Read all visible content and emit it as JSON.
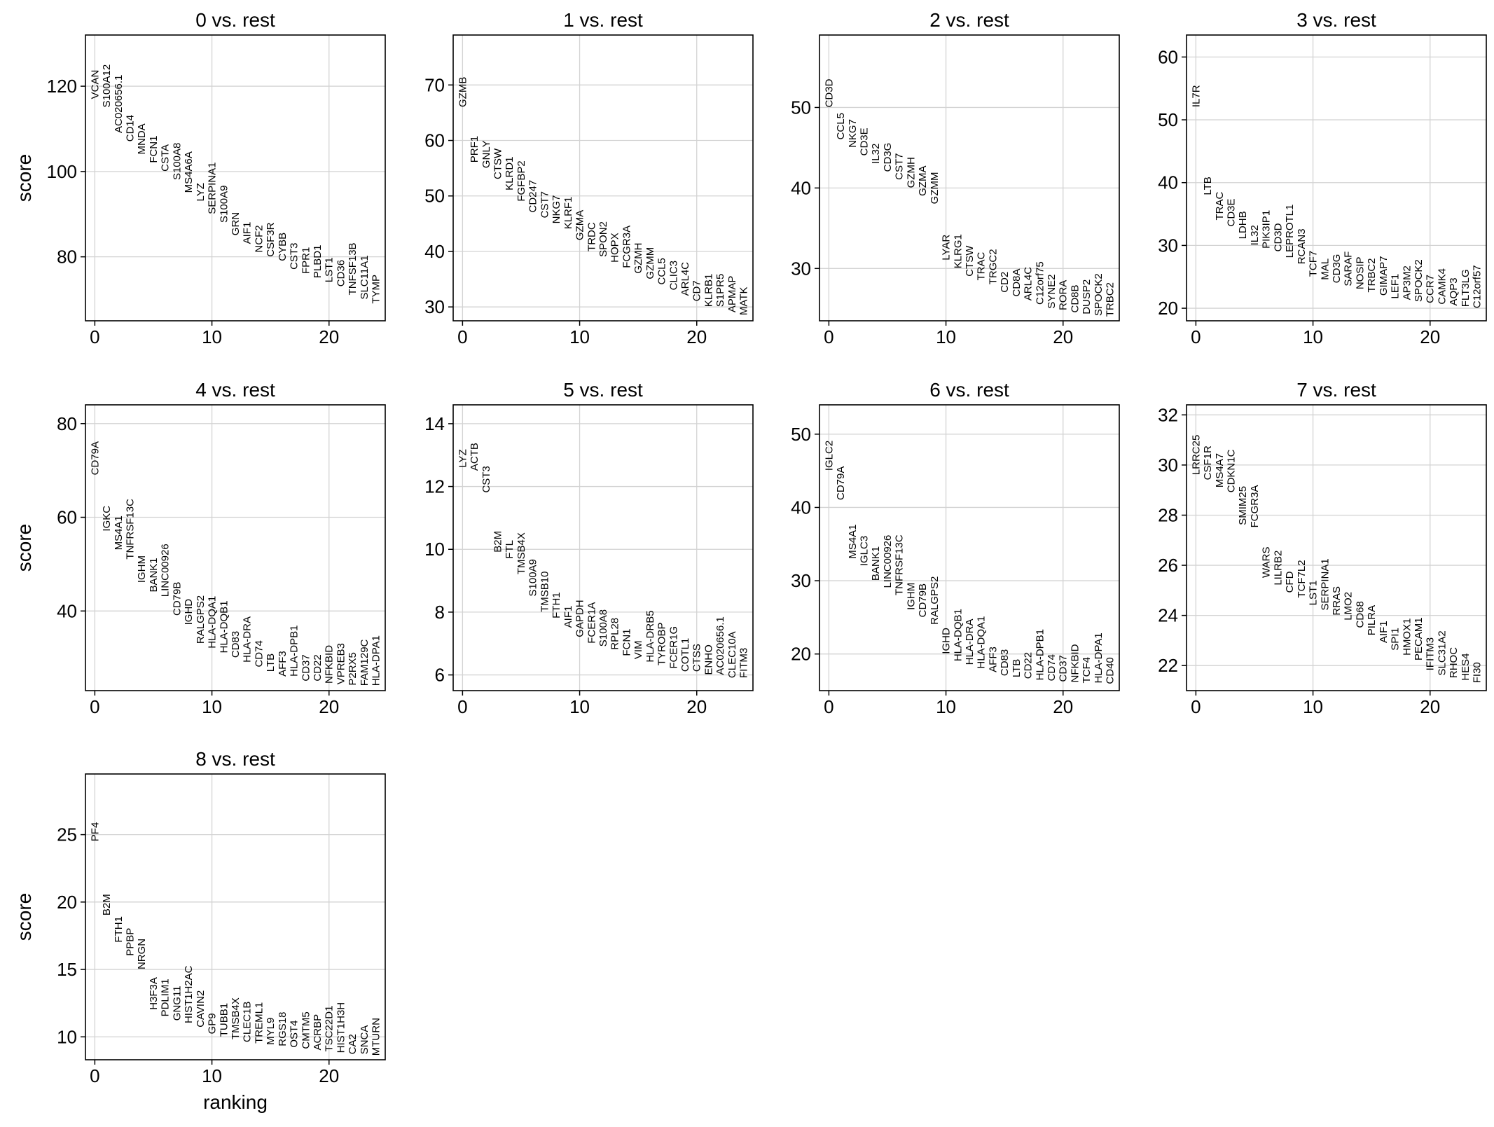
{
  "chart_data": [
    {
      "type": "scatter",
      "title": "0 vs. rest",
      "ylabel": "score",
      "xlabel": "",
      "xlim": [
        -0.8,
        24.8
      ],
      "ylim": [
        65,
        132
      ],
      "xticks": [
        0,
        10,
        20
      ],
      "yticks": [
        80,
        100,
        120
      ],
      "grid": true,
      "genes": [
        "VCAN",
        "S100A12",
        "AC020656.1",
        "CD14",
        "MNDA",
        "FCN1",
        "CSTA",
        "S100A8",
        "MS4A6A",
        "LYZ",
        "SERPINA1",
        "S100A9",
        "GRN",
        "AIF1",
        "NCF2",
        "CSF3R",
        "CYBB",
        "CST3",
        "FPR1",
        "PLBD1",
        "LST1",
        "CD36",
        "TNFSF13B",
        "SLC11A1",
        "TYMP"
      ],
      "scores": [
        117,
        115,
        109,
        107,
        104,
        102,
        100,
        98,
        95,
        93,
        90,
        88,
        85,
        83,
        81,
        80,
        79,
        77,
        76,
        75,
        74,
        73,
        71,
        70,
        69
      ]
    },
    {
      "type": "scatter",
      "title": "1 vs. rest",
      "ylabel": "",
      "xlabel": "",
      "xlim": [
        -0.8,
        24.8
      ],
      "ylim": [
        27.5,
        79
      ],
      "xticks": [
        0,
        10,
        20
      ],
      "yticks": [
        30,
        40,
        50,
        60,
        70
      ],
      "grid": true,
      "genes": [
        "GZMB",
        "PRF1",
        "GNLY",
        "CTSW",
        "KLRD1",
        "FGFBP2",
        "CD247",
        "CST7",
        "NKG7",
        "KLRF1",
        "GZMA",
        "TRDC",
        "SPON2",
        "HOPX",
        "FCGR3A",
        "GZMH",
        "GZMM",
        "CCL5",
        "CLIC3",
        "ARL4C",
        "CD7",
        "KLRB1",
        "S1PR5",
        "APMAP",
        "MATK"
      ],
      "scores": [
        66,
        56,
        55,
        53,
        51,
        49,
        47,
        46,
        45,
        44,
        42,
        40,
        39,
        38,
        37,
        36,
        35,
        34,
        33,
        32,
        31,
        30,
        30,
        29,
        28.5
      ]
    },
    {
      "type": "scatter",
      "title": "2 vs. rest",
      "ylabel": "",
      "xlabel": "",
      "xlim": [
        -0.8,
        24.8
      ],
      "ylim": [
        23.5,
        59
      ],
      "xticks": [
        0,
        10,
        20
      ],
      "yticks": [
        30,
        40,
        50
      ],
      "grid": true,
      "genes": [
        "CD3D",
        "CCL5",
        "NKG7",
        "CD3E",
        "IL32",
        "CD3G",
        "CST7",
        "GZMH",
        "GZMA",
        "GZMM",
        "LYAR",
        "KLRG1",
        "CTSW",
        "TRAC",
        "TRGC2",
        "CD2",
        "CD8A",
        "ARL4C",
        "C12orf75",
        "SYNE2",
        "RORA",
        "CD8B",
        "DUSP2",
        "SPOCK2",
        "TRBC2"
      ],
      "scores": [
        50,
        46,
        45,
        44,
        43,
        42,
        41,
        40,
        39,
        38,
        31,
        30,
        29,
        28.5,
        28,
        27,
        26.5,
        26,
        25.5,
        25,
        24.8,
        24.5,
        24.3,
        24.1,
        24
      ]
    },
    {
      "type": "scatter",
      "title": "3 vs. rest",
      "ylabel": "",
      "xlabel": "",
      "xlim": [
        -0.8,
        24.8
      ],
      "ylim": [
        18,
        63.5
      ],
      "xticks": [
        0,
        10,
        20
      ],
      "yticks": [
        20,
        30,
        40,
        50,
        60
      ],
      "grid": true,
      "genes": [
        "IL7R",
        "LTB",
        "TRAC",
        "CD3E",
        "LDHB",
        "IL32",
        "PIK3IP1",
        "CD3D",
        "LEPROTL1",
        "RCAN3",
        "TCF7",
        "MAL",
        "CD3G",
        "SARAF",
        "NOSIP",
        "TRBC2",
        "GIMAP7",
        "LEF1",
        "AP3M2",
        "SPOCK2",
        "CCR7",
        "CAMK4",
        "AQP3",
        "FLT3LG",
        "C12orf57"
      ],
      "scores": [
        52,
        38,
        34,
        33,
        31,
        30,
        29.5,
        29,
        28,
        27,
        25,
        24.5,
        24,
        23.5,
        23,
        22.5,
        22,
        21.5,
        21.3,
        21,
        20.8,
        20.6,
        20.4,
        20.2,
        20
      ]
    },
    {
      "type": "scatter",
      "title": "4 vs. rest",
      "ylabel": "score",
      "xlabel": "",
      "xlim": [
        -0.8,
        24.8
      ],
      "ylim": [
        23,
        84
      ],
      "xticks": [
        0,
        10,
        20
      ],
      "yticks": [
        40,
        60,
        80
      ],
      "grid": true,
      "genes": [
        "CD79A",
        "IGKC",
        "MS4A1",
        "TNFRSF13C",
        "IGHM",
        "BANK1",
        "LINC00926",
        "CD79B",
        "IGHD",
        "RALGPS2",
        "HLA-DQA1",
        "HLA-DQB1",
        "CD83",
        "HLA-DRA",
        "CD74",
        "LTB",
        "AFF3",
        "HLA-DPB1",
        "CD37",
        "CD22",
        "NFKBID",
        "VPREB3",
        "P2RX5",
        "FAM129C",
        "HLA-DPA1"
      ],
      "scores": [
        69,
        57,
        53,
        51,
        46,
        44,
        43,
        39,
        37,
        33,
        32,
        31,
        30,
        29,
        28,
        27,
        26,
        26,
        25,
        25,
        24.5,
        24.3,
        24.1,
        24,
        24
      ]
    },
    {
      "type": "scatter",
      "title": "5 vs. rest",
      "ylabel": "",
      "xlabel": "",
      "xlim": [
        -0.8,
        24.8
      ],
      "ylim": [
        5.5,
        14.6
      ],
      "xticks": [
        0,
        10,
        20
      ],
      "yticks": [
        6,
        8,
        10,
        12,
        14
      ],
      "grid": true,
      "genes": [
        "LYZ",
        "ACTB",
        "CST3",
        "B2M",
        "FTL",
        "TMSB4X",
        "S100A9",
        "TMSB10",
        "FTH1",
        "AIF1",
        "GAPDH",
        "FCER1A",
        "S100A8",
        "RPL28",
        "FCN1",
        "VIM",
        "HLA-DRB5",
        "TYROBP",
        "FCER1G",
        "COTL1",
        "CTSS",
        "ENHO",
        "AC020656.1",
        "CLEC10A",
        "FITM3"
      ],
      "scores": [
        12.6,
        12.5,
        11.8,
        9.9,
        9.7,
        9.2,
        8.5,
        8.0,
        7.8,
        7.5,
        7.2,
        7.0,
        6.9,
        6.8,
        6.6,
        6.5,
        6.4,
        6.3,
        6.2,
        6.1,
        6.1,
        6.0,
        6.0,
        5.9,
        5.9
      ]
    },
    {
      "type": "scatter",
      "title": "6 vs. rest",
      "ylabel": "",
      "xlabel": "",
      "xlim": [
        -0.8,
        24.8
      ],
      "ylim": [
        15,
        54
      ],
      "xticks": [
        0,
        10,
        20
      ],
      "yticks": [
        20,
        30,
        40,
        50
      ],
      "grid": true,
      "genes": [
        "IGLC2",
        "CD79A",
        "MS4A1",
        "IGLC3",
        "BANK1",
        "LINC00926",
        "TNFRSF13C",
        "IGHM",
        "CD79B",
        "RALGPS2",
        "IGHD",
        "HLA-DQB1",
        "HLA-DRA",
        "HLA-DQA1",
        "AFF3",
        "CD83",
        "LTB",
        "CD22",
        "HLA-DPB1",
        "CD74",
        "CD37",
        "NFKBID",
        "TCF4",
        "HLA-DPA1",
        "CD40"
      ],
      "scores": [
        45,
        41,
        33,
        32,
        30,
        29,
        28,
        26,
        25,
        24,
        20,
        19,
        18.5,
        18,
        17.5,
        17,
        16.8,
        16.6,
        16.4,
        16.3,
        16.2,
        16.1,
        16.0,
        16.0,
        15.9
      ]
    },
    {
      "type": "scatter",
      "title": "7 vs. rest",
      "ylabel": "",
      "xlabel": "",
      "xlim": [
        -0.8,
        24.8
      ],
      "ylim": [
        21,
        32.4
      ],
      "xticks": [
        0,
        10,
        20
      ],
      "yticks": [
        22,
        24,
        26,
        28,
        30,
        32
      ],
      "grid": true,
      "genes": [
        "LRRC25",
        "CSF1R",
        "MS4A7",
        "CDKN1C",
        "SMIM25",
        "FCGR3A",
        "WARS",
        "LILRB2",
        "CFD",
        "TCF7L2",
        "LST1",
        "SERPINA1",
        "RRAS",
        "LMO2",
        "CD68",
        "PILRA",
        "AIF1",
        "SPI1",
        "HMOX1",
        "PECAM1",
        "IFITM3",
        "SLC31A2",
        "RHOC",
        "HES4",
        "FI30"
      ],
      "scores": [
        29.6,
        29.4,
        29.1,
        28.9,
        27.6,
        27.5,
        25.5,
        25.2,
        24.9,
        24.7,
        24.4,
        24.2,
        24.0,
        23.8,
        23.5,
        23.2,
        22.9,
        22.6,
        22.4,
        22.2,
        21.8,
        21.6,
        21.5,
        21.4,
        21.3
      ]
    },
    {
      "type": "scatter",
      "title": "8 vs. rest",
      "ylabel": "score",
      "xlabel": "ranking",
      "xlim": [
        -0.8,
        24.8
      ],
      "ylim": [
        8.3,
        29.5
      ],
      "xticks": [
        0,
        10,
        20
      ],
      "yticks": [
        10,
        15,
        20,
        25
      ],
      "grid": true,
      "genes": [
        "PF4",
        "B2M",
        "FTH1",
        "PPBP",
        "NRGN",
        "H3F3A",
        "PDLIM1",
        "GNG11",
        "HIST1H2AC",
        "CAVIN2",
        "GP9",
        "TUBB1",
        "TMSB4X",
        "CLEC1B",
        "TREML1",
        "MYL9",
        "RGS18",
        "OST4",
        "CMTM5",
        "ACRBP",
        "TSC22D1",
        "HIST1H3H",
        "CA2",
        "SNCA",
        "MTURN"
      ],
      "scores": [
        24.5,
        19,
        17,
        16,
        15,
        12,
        11.5,
        11.2,
        11,
        10.7,
        10.2,
        10,
        9.8,
        9.6,
        9.5,
        9.4,
        9.3,
        9.2,
        9.1,
        9.0,
        8.9,
        8.8,
        8.7,
        8.7,
        8.6
      ]
    }
  ]
}
